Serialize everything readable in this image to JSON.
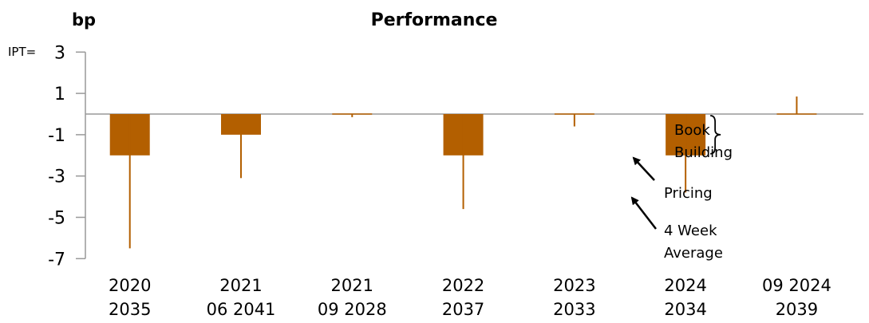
{
  "chart_data": {
    "type": "bar",
    "title": "Performance",
    "ylabel": "bp",
    "y_ticks": [
      "3",
      "1",
      "-1",
      "-3",
      "-5",
      "-7"
    ],
    "y_tick_values": [
      3,
      1,
      -1,
      -3,
      -5,
      -7
    ],
    "ylim": [
      -7,
      3
    ],
    "ipt_label": "IPT=",
    "categories": [
      [
        "2020",
        "2035"
      ],
      [
        "2021",
        "06 2041"
      ],
      [
        "2021",
        "09 2028"
      ],
      [
        "2022",
        "2037"
      ],
      [
        "2023",
        "2033"
      ],
      [
        "2024",
        "2034"
      ],
      [
        "09 2024",
        "2039"
      ]
    ],
    "book_building": [
      -2,
      -1,
      0,
      -2,
      0,
      -2,
      0
    ],
    "pricing": [
      -2,
      -1,
      0,
      -2,
      0,
      -2,
      0
    ],
    "four_week_average": [
      -6.5,
      -3.1,
      -0.15,
      -4.6,
      -0.6,
      -3.8,
      0.85
    ],
    "annotations": {
      "book_building": [
        "Book",
        "Building"
      ],
      "pricing": "Pricing",
      "four_week_average": [
        "4 Week",
        "Average"
      ]
    },
    "colors": {
      "bar": "#b35f00",
      "axis": "#999999",
      "text": "#000000"
    },
    "grid": false
  }
}
